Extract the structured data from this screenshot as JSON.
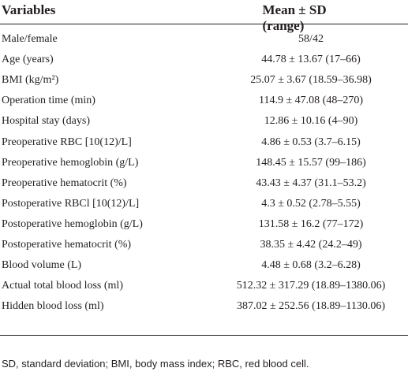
{
  "table": {
    "header": [
      "Variables",
      "Mean ± SD (range)"
    ],
    "rows": [
      [
        "Male/female",
        "58/42"
      ],
      [
        "Age (years)",
        "44.78 ± 13.67 (17–66)"
      ],
      [
        "BMI (kg/m²)",
        "25.07 ± 3.67 (18.59–36.98)"
      ],
      [
        "Operation time (min)",
        "114.9 ± 47.08 (48–270)"
      ],
      [
        "Hospital stay (days)",
        "12.86 ± 10.16 (4–90)"
      ],
      [
        "Preoperative RBC [10(12)/L]",
        "4.86 ± 0.53 (3.7–6.15)"
      ],
      [
        "Preoperative hemoglobin (g/L)",
        "148.45 ± 15.57 (99–186)"
      ],
      [
        "Preoperative hematocrit (%)",
        "43.43 ± 4.37 (31.1–53.2)"
      ],
      [
        "Postoperative RBCl [10(12)/L]",
        "4.3 ± 0.52 (2.78–5.55)"
      ],
      [
        "Postoperative hemoglobin (g/L)",
        "131.58 ± 16.2 (77–172)"
      ],
      [
        "Postoperative hematocrit (%)",
        "38.35 ± 4.42 (24.2–49)"
      ],
      [
        "Blood volume (L)",
        "4.48 ± 0.68 (3.2–6.28)"
      ],
      [
        "Actual total blood loss (ml)",
        "512.32 ± 317.29 (18.89–1380.06)"
      ],
      [
        "Hidden blood loss (ml)",
        "387.02 ± 252.56 (18.89–1130.06)"
      ]
    ],
    "footnote": "SD, standard deviation; BMI, body mass index; RBC, red blood cell."
  }
}
